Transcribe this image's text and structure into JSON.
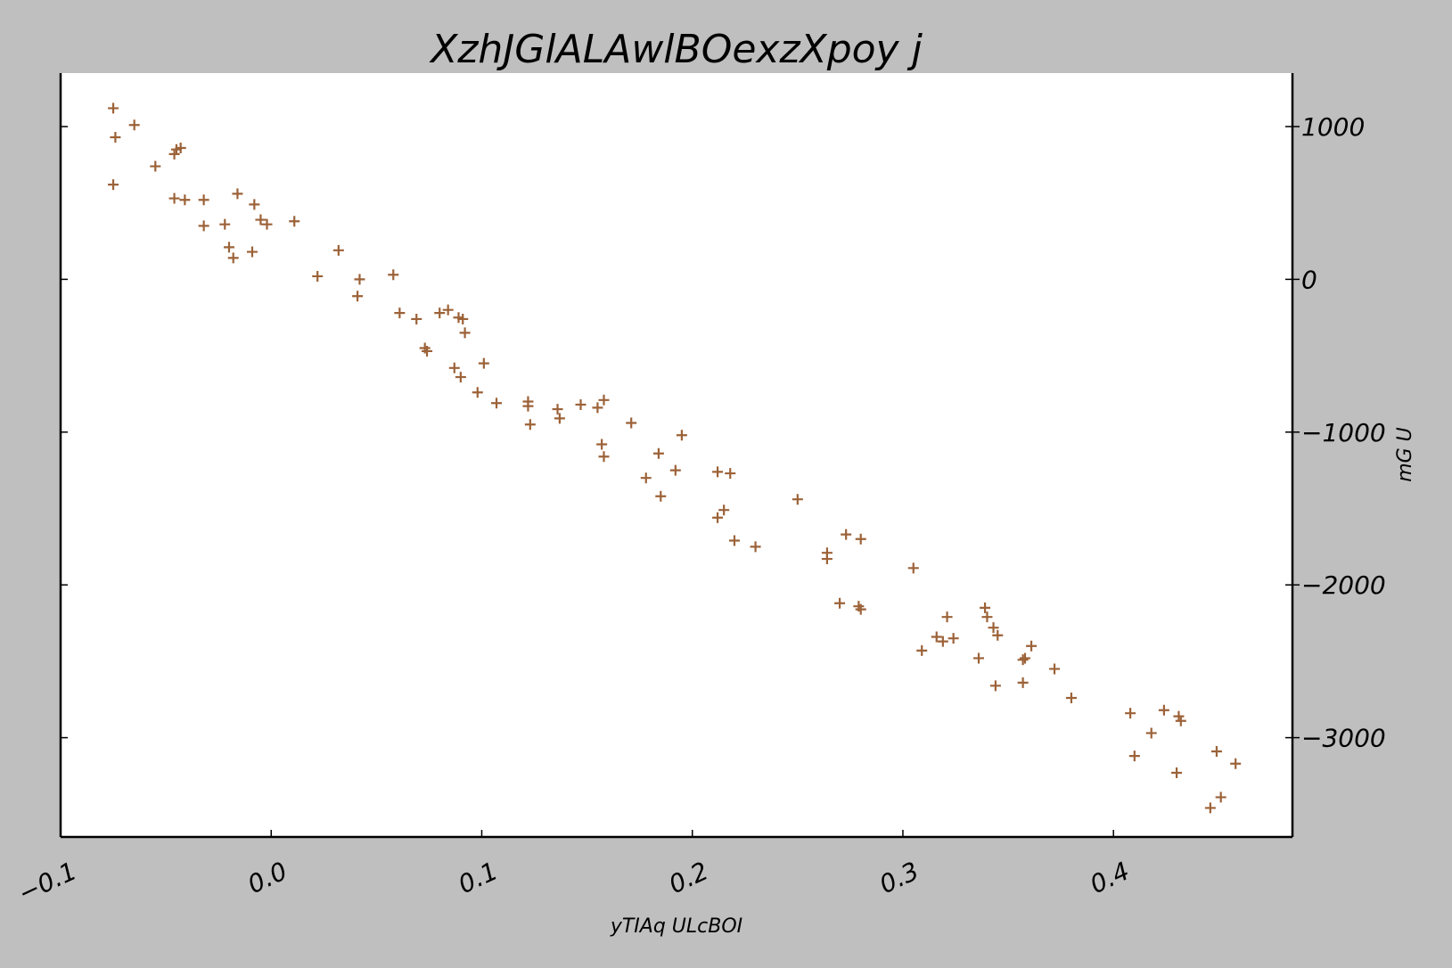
{
  "chart_data": {
    "type": "scatter",
    "title": "XzhJGlALAwlBOexzXpoy j",
    "xlabel": "yTIAq ULcBOI",
    "ylabel": "mG U",
    "xlim": [
      -0.1,
      0.485
    ],
    "ylim": [
      -3650,
      1350
    ],
    "x_ticks": [
      -0.1,
      0.0,
      0.1,
      0.2,
      0.3,
      0.4
    ],
    "x_tick_labels": [
      "−0.1",
      "0.0",
      "0.1",
      "0.2",
      "0.3",
      "0.4"
    ],
    "y_ticks": [
      1000,
      0,
      -1000,
      -2000,
      -3000
    ],
    "y_tick_labels": [
      "1000",
      "0",
      "−1000",
      "−2000",
      "−3000"
    ],
    "y_axis_side": "right",
    "grid": false,
    "legend": "none",
    "marker": "+",
    "color": "#9c6238",
    "series": [
      {
        "x": [
          -0.075,
          -0.074,
          -0.065,
          -0.055,
          -0.046,
          -0.045,
          -0.043,
          -0.075,
          -0.046,
          -0.041,
          -0.032,
          -0.032,
          -0.016,
          -0.008,
          -0.005,
          -0.002,
          0.011,
          -0.022,
          -0.02,
          -0.018,
          -0.009,
          0.022,
          0.032,
          0.042,
          0.041,
          0.058,
          0.061,
          0.069,
          0.08,
          0.084,
          0.089,
          0.091,
          0.092,
          0.073,
          0.074,
          0.087,
          0.09,
          0.101,
          0.098,
          0.107,
          0.122,
          0.122,
          0.123,
          0.136,
          0.137,
          0.147,
          0.155,
          0.158,
          0.157,
          0.158,
          0.171,
          0.178,
          0.184,
          0.185,
          0.192,
          0.195,
          0.212,
          0.218,
          0.212,
          0.215,
          0.22,
          0.23,
          0.25,
          0.264,
          0.264,
          0.273,
          0.28,
          0.27,
          0.279,
          0.28,
          0.305,
          0.309,
          0.316,
          0.319,
          0.321,
          0.324,
          0.336,
          0.339,
          0.34,
          0.343,
          0.345,
          0.344,
          0.357,
          0.358,
          0.361,
          0.357,
          0.372,
          0.38,
          0.408,
          0.41,
          0.418,
          0.424,
          0.431,
          0.432,
          0.43,
          0.449,
          0.458,
          0.451,
          0.446
        ],
        "y": [
          1120,
          930,
          1010,
          740,
          820,
          850,
          860,
          620,
          530,
          520,
          520,
          350,
          560,
          490,
          390,
          360,
          380,
          360,
          210,
          140,
          180,
          20,
          190,
          0,
          -110,
          30,
          -220,
          -260,
          -220,
          -200,
          -250,
          -260,
          -350,
          -450,
          -470,
          -580,
          -640,
          -550,
          -740,
          -810,
          -800,
          -830,
          -950,
          -850,
          -910,
          -820,
          -840,
          -790,
          -1080,
          -1160,
          -940,
          -1300,
          -1140,
          -1420,
          -1250,
          -1020,
          -1260,
          -1270,
          -1560,
          -1510,
          -1710,
          -1750,
          -1440,
          -1790,
          -1830,
          -1670,
          -1700,
          -2120,
          -2140,
          -2160,
          -1890,
          -2430,
          -2340,
          -2370,
          -2210,
          -2350,
          -2480,
          -2150,
          -2210,
          -2280,
          -2330,
          -2660,
          -2490,
          -2480,
          -2400,
          -2640,
          -2550,
          -2740,
          -2840,
          -3120,
          -2970,
          -2820,
          -2860,
          -2890,
          -3230,
          -3090,
          -3170,
          -3390,
          -3460
        ]
      }
    ]
  }
}
